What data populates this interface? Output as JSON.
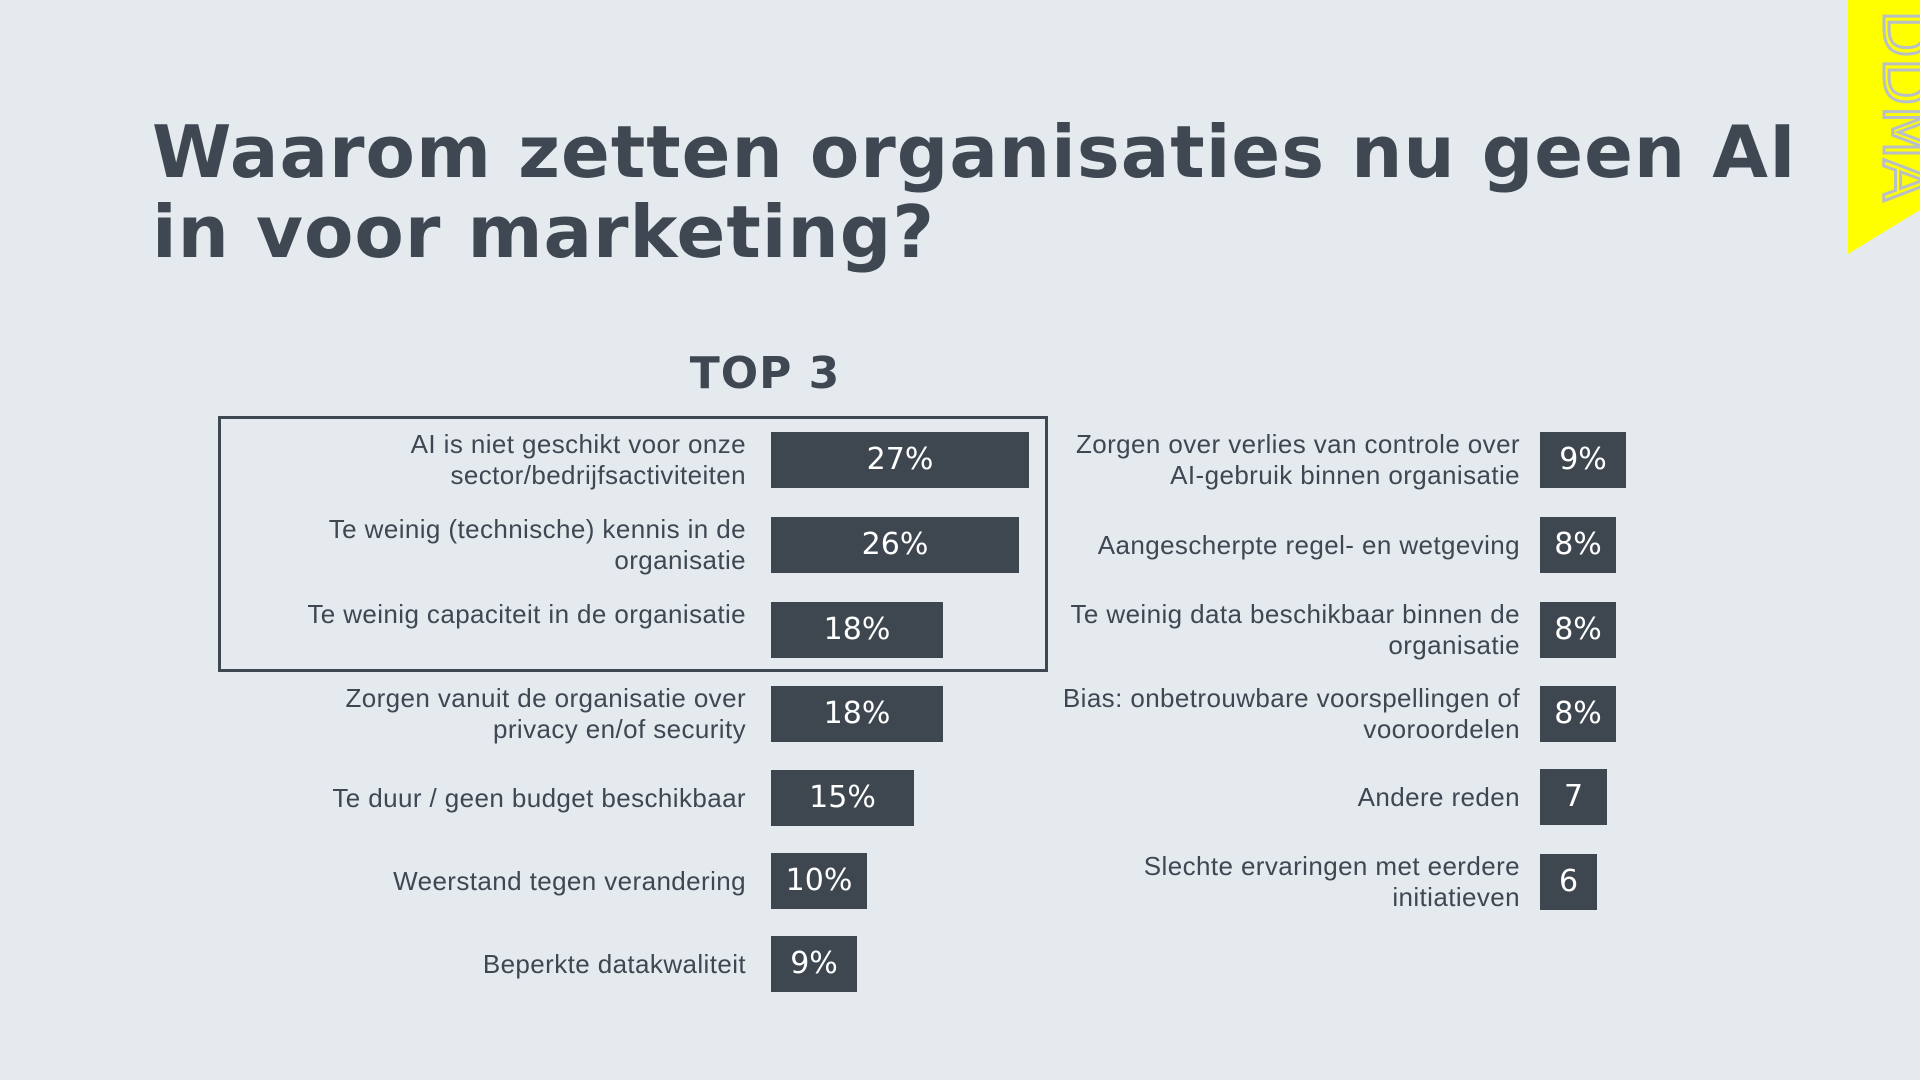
{
  "title": "Waarom zetten organisaties nu geen AI in voor marketing?",
  "logo_text": "DDMA",
  "colors": {
    "background": "#e5eaef",
    "bar": "#3e4750",
    "text": "#3f4852",
    "logo": "#ffff00"
  },
  "chart_data": {
    "type": "bar",
    "orientation": "horizontal",
    "subtitle": "TOP 3",
    "unit": "%",
    "max_value": 27,
    "left_column": [
      {
        "label": "AI is niet geschikt voor onze sector/bedrijfsactiviteiten",
        "value": 27,
        "value_label": "27%",
        "top3": true
      },
      {
        "label": "Te weinig (technische) kennis in de organisatie",
        "value": 26,
        "value_label": "26%",
        "top3": true
      },
      {
        "label": "Te weinig capaciteit in de organisatie",
        "value": 18,
        "value_label": "18%",
        "top3": true
      },
      {
        "label": "Zorgen vanuit de organisatie over privacy en/of security",
        "value": 18,
        "value_label": "18%",
        "top3": false
      },
      {
        "label": "Te duur / geen budget beschikbaar",
        "value": 15,
        "value_label": "15%",
        "top3": false
      },
      {
        "label": "Weerstand tegen verandering",
        "value": 10,
        "value_label": "10%",
        "top3": false
      },
      {
        "label": "Beperkte datakwaliteit",
        "value": 9,
        "value_label": "9%",
        "top3": false
      }
    ],
    "right_column": [
      {
        "label": "Zorgen over verlies van controle over AI-gebruik binnen organisatie",
        "value": 9,
        "value_label": "9%"
      },
      {
        "label": "Aangescherpte regel- en wetgeving",
        "value": 8,
        "value_label": "8%"
      },
      {
        "label": "Te weinig data beschikbaar binnen de organisatie",
        "value": 8,
        "value_label": "8%"
      },
      {
        "label": "Bias: onbetrouwbare voorspellingen of vooroordelen",
        "value": 8,
        "value_label": "8%"
      },
      {
        "label": "Andere reden",
        "value": 7,
        "value_label": "7"
      },
      {
        "label": "Slechte ervaringen met eerdere initiatieven",
        "value": 6,
        "value_label": "6"
      }
    ]
  }
}
